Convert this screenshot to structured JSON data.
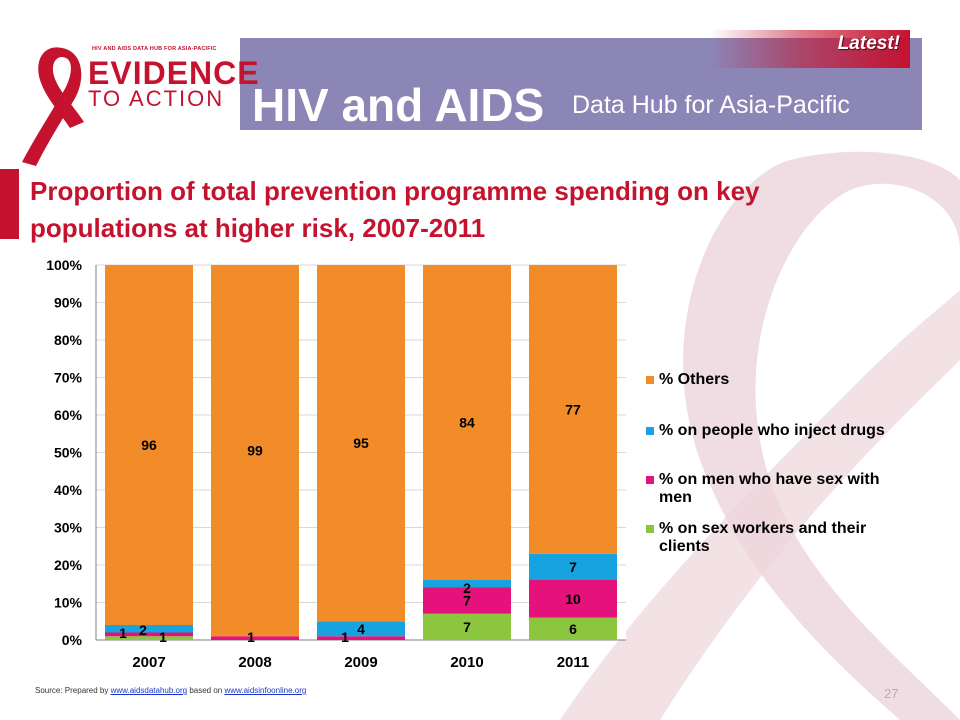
{
  "header": {
    "logo_small": "HIV AND AIDS DATA HUB FOR ASIA-PACIFIC",
    "logo_line1": "EVIDENCE",
    "logo_line2": "TO ACTION",
    "title": "HIV and AIDS",
    "subtitle": "Data Hub for Asia-Pacific",
    "badge": "Latest!"
  },
  "colors": {
    "header": "#8b86b5",
    "brand_red": "#c4122f",
    "others": "#f28c28",
    "pwid": "#17a2e0",
    "msm": "#e4127a",
    "sw": "#8cc63f"
  },
  "footer": {
    "source_prefix": "Source: Prepared by ",
    "source_link1": "www.aidsdatahub.org",
    "source_mid": " based on ",
    "source_link2": "www.aidsinfoonline.org",
    "page_number": "27"
  },
  "chart_data": {
    "type": "bar",
    "stacked": "percent",
    "title": "Proportion of total prevention programme spending on key populations at higher risk, 2007-2011",
    "categories": [
      "2007",
      "2008",
      "2009",
      "2010",
      "2011"
    ],
    "y_ticks": [
      "0%",
      "10%",
      "20%",
      "30%",
      "40%",
      "50%",
      "60%",
      "70%",
      "80%",
      "90%",
      "100%"
    ],
    "ylim": [
      0,
      100
    ],
    "grid": true,
    "legend_position": "right",
    "series": [
      {
        "name": "% on sex workers and their clients",
        "color": "#8cc63f",
        "values": [
          1,
          0,
          0,
          7,
          6
        ],
        "labels": [
          "1",
          "",
          "",
          "7",
          "6"
        ]
      },
      {
        "name": "% on men who have sex with men",
        "color": "#e4127a",
        "values": [
          1,
          1,
          1,
          7,
          10
        ],
        "labels": [
          "1",
          "1",
          "1",
          "7",
          "10"
        ]
      },
      {
        "name": "% on people who inject drugs",
        "color": "#17a2e0",
        "values": [
          2,
          0,
          4,
          2,
          7
        ],
        "labels": [
          "2",
          "",
          "4",
          "2",
          "7"
        ]
      },
      {
        "name": "% Others",
        "color": "#f28c28",
        "values": [
          96,
          99,
          95,
          84,
          77
        ],
        "labels": [
          "96",
          "99",
          "95",
          "84",
          "77"
        ]
      }
    ],
    "legend": [
      {
        "lines": [
          "% Others"
        ],
        "color": "#f28c28"
      },
      {
        "lines": [
          "% on people who inject drugs"
        ],
        "color": "#17a2e0"
      },
      {
        "lines": [
          "% on men who have sex with",
          "men"
        ],
        "color": "#e4127a"
      },
      {
        "lines": [
          "% on sex workers and their",
          "clients"
        ],
        "color": "#8cc63f"
      }
    ]
  }
}
